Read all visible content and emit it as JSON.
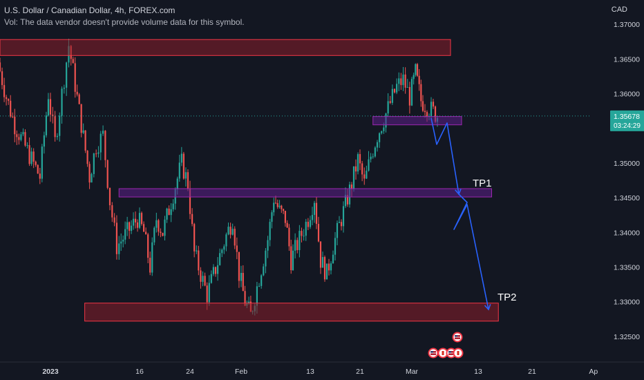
{
  "header": {
    "title": "U.S. Dollar / Canadian Dollar, 4h, FOREX.com",
    "volume_note": "Vol: The data vendor doesn't provide volume data for this symbol."
  },
  "currency_label": "CAD",
  "price_badge": {
    "price": "1.35678",
    "countdown": "03:24:29"
  },
  "colors": {
    "up": "#26a69a",
    "down": "#ef5350",
    "background": "#131722",
    "zone_fill": "#8b1e2a",
    "zone_border": "#f23645",
    "band_fill": "#5c1f8a",
    "band_border": "#9c27b0",
    "projection": "#2962ff",
    "price_line": "#26a69a"
  },
  "chart_data": {
    "type": "candlestick",
    "symbol": "USDCAD",
    "timeframe": "4h",
    "ylim": [
      1.3215,
      1.3735
    ],
    "y_ticks": [
      "1.37000",
      "1.36500",
      "1.36000",
      "1.35500",
      "1.35000",
      "1.34500",
      "1.34000",
      "1.33500",
      "1.33000",
      "1.32500"
    ],
    "y_tick_values": [
      1.37,
      1.365,
      1.36,
      1.355,
      1.35,
      1.345,
      1.34,
      1.335,
      1.33,
      1.325
    ],
    "x_tick_labels": [
      "2023",
      "16",
      "24",
      "Feb",
      "13",
      "21",
      "Mar",
      "13",
      "21",
      "Ap"
    ],
    "x_tick_dates": [
      "2023-01-03",
      "2023-01-16",
      "2023-01-24",
      "2023-02-01",
      "2023-02-13",
      "2023-02-21",
      "2023-03-01",
      "2023-03-13",
      "2023-03-21",
      "2023-04-01"
    ],
    "x_range_dates": [
      "2022-12-28",
      "2023-04-01"
    ],
    "current_price": 1.35678,
    "path_anchors": [
      {
        "date": "2022-12-28",
        "close": 1.3645
      },
      {
        "date": "2022-12-29",
        "close": 1.3595
      },
      {
        "date": "2022-12-30",
        "close": 1.3555
      },
      {
        "date": "2023-01-02",
        "close": 1.348
      },
      {
        "date": "2023-01-03",
        "close": 1.36
      },
      {
        "date": "2023-01-04",
        "close": 1.353
      },
      {
        "date": "2023-01-05",
        "close": 1.36
      },
      {
        "date": "2023-01-06",
        "close": 1.367
      },
      {
        "date": "2023-01-09",
        "close": 1.348
      },
      {
        "date": "2023-01-10",
        "close": 1.3525
      },
      {
        "date": "2023-01-11",
        "close": 1.354
      },
      {
        "date": "2023-01-12",
        "close": 1.3445
      },
      {
        "date": "2023-01-13",
        "close": 1.338
      },
      {
        "date": "2023-01-16",
        "close": 1.342
      },
      {
        "date": "2023-01-17",
        "close": 1.34
      },
      {
        "date": "2023-01-18",
        "close": 1.335
      },
      {
        "date": "2023-01-19",
        "close": 1.342
      },
      {
        "date": "2023-01-20",
        "close": 1.34
      },
      {
        "date": "2023-01-23",
        "close": 1.35
      },
      {
        "date": "2023-01-24",
        "close": 1.347
      },
      {
        "date": "2023-01-25",
        "close": 1.337
      },
      {
        "date": "2023-01-26",
        "close": 1.334
      },
      {
        "date": "2023-01-27",
        "close": 1.331
      },
      {
        "date": "2023-01-30",
        "close": 1.3395
      },
      {
        "date": "2023-01-31",
        "close": 1.342
      },
      {
        "date": "2023-02-01",
        "close": 1.334
      },
      {
        "date": "2023-02-02",
        "close": 1.33
      },
      {
        "date": "2023-02-03",
        "close": 1.328
      },
      {
        "date": "2023-02-06",
        "close": 1.339
      },
      {
        "date": "2023-02-07",
        "close": 1.345
      },
      {
        "date": "2023-02-08",
        "close": 1.343
      },
      {
        "date": "2023-02-09",
        "close": 1.342
      },
      {
        "date": "2023-02-10",
        "close": 1.336
      },
      {
        "date": "2023-02-13",
        "close": 1.342
      },
      {
        "date": "2023-02-14",
        "close": 1.345
      },
      {
        "date": "2023-02-15",
        "close": 1.336
      },
      {
        "date": "2023-02-16",
        "close": 1.334
      },
      {
        "date": "2023-02-17",
        "close": 1.338
      },
      {
        "date": "2023-02-20",
        "close": 1.347
      },
      {
        "date": "2023-02-21",
        "close": 1.3505
      },
      {
        "date": "2023-02-22",
        "close": 1.347
      },
      {
        "date": "2023-02-23",
        "close": 1.351
      },
      {
        "date": "2023-02-24",
        "close": 1.354
      },
      {
        "date": "2023-02-27",
        "close": 1.361
      },
      {
        "date": "2023-02-28",
        "close": 1.362
      },
      {
        "date": "2023-03-01",
        "close": 1.3595
      },
      {
        "date": "2023-03-02",
        "close": 1.363
      },
      {
        "date": "2023-03-03",
        "close": 1.359
      },
      {
        "date": "2023-03-06",
        "close": 1.3568
      }
    ],
    "annotations": {
      "resistance_zone": {
        "from_date": "2022-12-28",
        "to_date": "2023-03-08",
        "price_low": 1.3655,
        "price_high": 1.3678
      },
      "upper_band": {
        "from_date": "2023-02-23",
        "to_date": "2023-03-10",
        "price_low": 1.3555,
        "price_high": 1.3567
      },
      "middle_band": {
        "from_date": "2023-01-13",
        "to_date": "2023-03-15",
        "price_low": 1.3451,
        "price_high": 1.3463
      },
      "support_zone": {
        "from_date": "2023-01-08",
        "to_date": "2023-03-16",
        "price_low": 1.3272,
        "price_high": 1.3298
      },
      "projection_path": [
        {
          "date": "2023-03-06",
          "price": 1.356
        },
        {
          "date": "2023-03-07",
          "price": 1.3527
        },
        {
          "date": "2023-03-08",
          "price": 1.3558
        },
        {
          "date": "2023-03-10",
          "price": 1.3468
        },
        {
          "date": "2023-03-10",
          "price": 1.3468
        },
        {
          "date": "2023-03-09",
          "price": 1.341
        },
        {
          "date": "2023-03-11",
          "price": 1.345
        },
        {
          "date": "2023-03-14",
          "price": 1.329
        }
      ],
      "tp1_label": "TP1",
      "tp2_label": "TP2"
    },
    "event_icons": [
      {
        "date": "2023-03-10",
        "price": 1.3253,
        "icon": "us-flag-icon"
      },
      {
        "date": "2023-03-08",
        "price": 1.3238,
        "icon": "us-flag-icon"
      },
      {
        "date": "2023-03-09",
        "price": 1.3238,
        "icon": "ca-flag-icon"
      },
      {
        "date": "2023-03-09",
        "price": 1.3238,
        "icon": "us-flag-icon"
      },
      {
        "date": "2023-03-10",
        "price": 1.3238,
        "icon": "ca-flag-icon"
      }
    ]
  }
}
